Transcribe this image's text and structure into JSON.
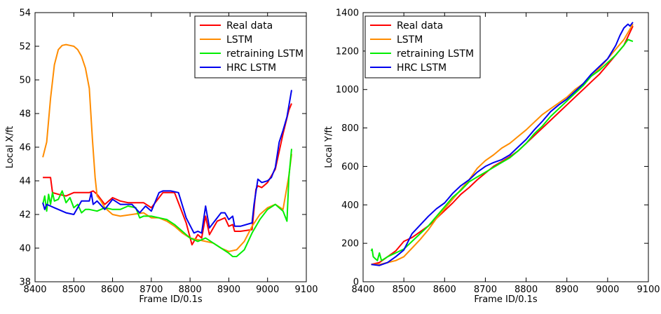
{
  "chart_data": [
    {
      "type": "line",
      "xlabel": "Frame ID/0.1s",
      "ylabel": "Local X/ft",
      "xlim": [
        8400,
        9100
      ],
      "ylim": [
        38,
        54
      ],
      "xticks": [
        "8400",
        "8500",
        "8600",
        "8700",
        "8800",
        "8900",
        "9000",
        "9100"
      ],
      "yticks": [
        "38",
        "40",
        "42",
        "44",
        "46",
        "48",
        "50",
        "52",
        "54"
      ],
      "legend_position": "top-right",
      "series": [
        {
          "name": "Real data",
          "color": "#ff0000",
          "x": [
            8420,
            8440,
            8445,
            8460,
            8480,
            8500,
            8540,
            8550,
            8560,
            8580,
            8600,
            8620,
            8640,
            8680,
            8700,
            8730,
            8760,
            8790,
            8805,
            8820,
            8830,
            8840,
            8850,
            8870,
            8890,
            8900,
            8910,
            8915,
            8930,
            8960,
            8970,
            8975,
            8985,
            9000,
            9020,
            9040,
            9055,
            9062
          ],
          "y": [
            44.2,
            44.2,
            43.3,
            43.2,
            43.1,
            43.3,
            43.3,
            43.4,
            43.2,
            42.6,
            43.0,
            42.8,
            42.7,
            42.7,
            42.4,
            43.3,
            43.3,
            41.5,
            40.2,
            40.8,
            40.6,
            41.9,
            40.8,
            41.6,
            41.8,
            41.3,
            41.4,
            41.0,
            41.0,
            41.1,
            43.5,
            43.7,
            43.6,
            43.9,
            44.7,
            46.8,
            48.2,
            48.6
          ]
        },
        {
          "name": "LSTM",
          "color": "#ff8c00",
          "x": [
            8420,
            8430,
            8440,
            8450,
            8460,
            8470,
            8480,
            8490,
            8500,
            8510,
            8520,
            8530,
            8540,
            8548,
            8555,
            8560,
            8570,
            8580,
            8600,
            8620,
            8650,
            8680,
            8700,
            8720,
            8740,
            8760,
            8780,
            8800,
            8820,
            8840,
            8860,
            8880,
            8900,
            8920,
            8940,
            8960,
            8980,
            9000,
            9020,
            9040,
            9055,
            9062
          ],
          "y": [
            45.4,
            46.3,
            48.9,
            50.9,
            51.8,
            52.05,
            52.1,
            52.05,
            52.0,
            51.8,
            51.4,
            50.7,
            49.5,
            46.5,
            44.2,
            43.1,
            42.8,
            42.4,
            42.0,
            41.9,
            42.0,
            42.1,
            41.8,
            41.8,
            41.6,
            41.3,
            40.9,
            40.6,
            40.5,
            40.4,
            40.3,
            40.0,
            39.8,
            39.9,
            40.4,
            41.3,
            42.0,
            42.4,
            42.6,
            42.3,
            44.3,
            45.6
          ]
        },
        {
          "name": "retraining LSTM",
          "color": "#00ee00",
          "x": [
            8420,
            8425,
            8430,
            8435,
            8440,
            8445,
            8450,
            8460,
            8470,
            8480,
            8490,
            8500,
            8510,
            8520,
            8530,
            8540,
            8560,
            8580,
            8600,
            8620,
            8640,
            8660,
            8670,
            8680,
            8700,
            8720,
            8740,
            8760,
            8780,
            8800,
            8820,
            8840,
            8860,
            8880,
            8900,
            8910,
            8920,
            8940,
            8960,
            8980,
            9000,
            9020,
            9040,
            9050,
            9055,
            9062
          ],
          "y": [
            42.6,
            43.1,
            42.2,
            43.2,
            42.6,
            43.3,
            42.8,
            42.9,
            43.4,
            42.7,
            43.0,
            42.4,
            42.6,
            42.1,
            42.3,
            42.3,
            42.2,
            42.4,
            42.3,
            42.3,
            42.5,
            42.4,
            41.8,
            41.9,
            41.9,
            41.8,
            41.7,
            41.4,
            41.0,
            40.6,
            40.4,
            40.6,
            40.3,
            40.0,
            39.7,
            39.5,
            39.5,
            39.9,
            40.9,
            41.7,
            42.3,
            42.6,
            42.2,
            41.6,
            44.2,
            45.9
          ]
        },
        {
          "name": "HRC LSTM",
          "color": "#0000ee",
          "x": [
            8420,
            8425,
            8430,
            8440,
            8450,
            8460,
            8470,
            8480,
            8500,
            8520,
            8540,
            8545,
            8550,
            8560,
            8580,
            8590,
            8600,
            8620,
            8650,
            8670,
            8685,
            8700,
            8720,
            8730,
            8750,
            8770,
            8790,
            8810,
            8820,
            8830,
            8840,
            8850,
            8860,
            8880,
            8890,
            8900,
            8910,
            8915,
            8930,
            8960,
            8965,
            8975,
            8985,
            9000,
            9010,
            9020,
            9030,
            9040,
            9050,
            9062
          ],
          "y": [
            42.7,
            42.3,
            42.6,
            42.5,
            42.4,
            42.3,
            42.2,
            42.1,
            42.0,
            42.8,
            42.8,
            43.3,
            42.6,
            42.8,
            42.3,
            42.6,
            42.9,
            42.6,
            42.6,
            42.1,
            42.5,
            42.2,
            43.3,
            43.4,
            43.4,
            43.3,
            41.8,
            40.9,
            41.0,
            40.9,
            42.5,
            41.2,
            41.5,
            42.1,
            42.1,
            41.7,
            41.9,
            41.3,
            41.3,
            41.5,
            42.6,
            44.1,
            43.9,
            44.0,
            44.2,
            44.8,
            46.3,
            47.0,
            47.8,
            49.4
          ]
        }
      ]
    },
    {
      "type": "line",
      "xlabel": "Frame ID/0.1s",
      "ylabel": "Local Y/ft",
      "xlim": [
        8400,
        9100
      ],
      "ylim": [
        0,
        1400
      ],
      "xticks": [
        "8400",
        "8500",
        "8600",
        "8700",
        "8800",
        "8900",
        "9000",
        "9100"
      ],
      "yticks": [
        "0",
        "200",
        "400",
        "600",
        "800",
        "1000",
        "1200",
        "1400"
      ],
      "legend_position": "top-left",
      "series": [
        {
          "name": "Real data",
          "color": "#ff0000",
          "x": [
            8420,
            8440,
            8460,
            8480,
            8500,
            8520,
            8540,
            8560,
            8580,
            8600,
            8620,
            8640,
            8660,
            8680,
            8700,
            8720,
            8740,
            8760,
            8780,
            8800,
            8820,
            8840,
            8860,
            8880,
            8900,
            8920,
            8940,
            8960,
            8980,
            9000,
            9020,
            9040,
            9062
          ],
          "y": [
            90,
            100,
            130,
            160,
            210,
            230,
            260,
            290,
            330,
            370,
            410,
            455,
            490,
            530,
            565,
            600,
            625,
            650,
            680,
            720,
            760,
            800,
            840,
            880,
            920,
            960,
            1000,
            1040,
            1080,
            1130,
            1180,
            1230,
            1330
          ]
        },
        {
          "name": "LSTM",
          "color": "#ff8c00",
          "x": [
            8420,
            8440,
            8460,
            8480,
            8500,
            8520,
            8540,
            8560,
            8580,
            8600,
            8620,
            8640,
            8660,
            8680,
            8700,
            8720,
            8740,
            8760,
            8780,
            8800,
            8820,
            8840,
            8860,
            8880,
            8900,
            8920,
            8940,
            8960,
            8980,
            9000,
            9020,
            9040,
            9062
          ],
          "y": [
            90,
            90,
            100,
            110,
            130,
            175,
            220,
            270,
            330,
            380,
            430,
            480,
            530,
            590,
            630,
            660,
            695,
            720,
            755,
            790,
            830,
            870,
            900,
            930,
            960,
            1000,
            1030,
            1070,
            1110,
            1160,
            1210,
            1260,
            1340
          ]
        },
        {
          "name": "retraining LSTM",
          "color": "#00ee00",
          "x": [
            8420,
            8422,
            8425,
            8430,
            8435,
            8440,
            8445,
            8460,
            8480,
            8500,
            8520,
            8540,
            8560,
            8580,
            8600,
            8620,
            8640,
            8660,
            8680,
            8700,
            8720,
            8740,
            8760,
            8780,
            8800,
            8820,
            8840,
            8860,
            8880,
            8900,
            8920,
            8940,
            8960,
            8980,
            9000,
            9020,
            9040,
            9050,
            9062
          ],
          "y": [
            160,
            170,
            130,
            120,
            110,
            150,
            110,
            130,
            150,
            170,
            210,
            250,
            290,
            340,
            390,
            440,
            475,
            520,
            545,
            570,
            595,
            620,
            645,
            680,
            720,
            770,
            810,
            860,
            900,
            940,
            980,
            1020,
            1070,
            1100,
            1140,
            1180,
            1230,
            1260,
            1250
          ]
        },
        {
          "name": "HRC LSTM",
          "color": "#0000ee",
          "x": [
            8420,
            8440,
            8460,
            8480,
            8500,
            8520,
            8540,
            8560,
            8580,
            8600,
            8620,
            8640,
            8660,
            8680,
            8700,
            8720,
            8740,
            8760,
            8780,
            8800,
            8820,
            8840,
            8860,
            8880,
            8900,
            8920,
            8940,
            8960,
            8980,
            9000,
            9020,
            9030,
            9040,
            9050,
            9055,
            9062
          ],
          "y": [
            90,
            85,
            100,
            130,
            165,
            250,
            295,
            340,
            380,
            410,
            460,
            500,
            530,
            570,
            600,
            620,
            635,
            660,
            700,
            740,
            790,
            835,
            885,
            920,
            950,
            990,
            1030,
            1080,
            1120,
            1160,
            1230,
            1280,
            1320,
            1340,
            1330,
            1350
          ]
        }
      ]
    }
  ]
}
